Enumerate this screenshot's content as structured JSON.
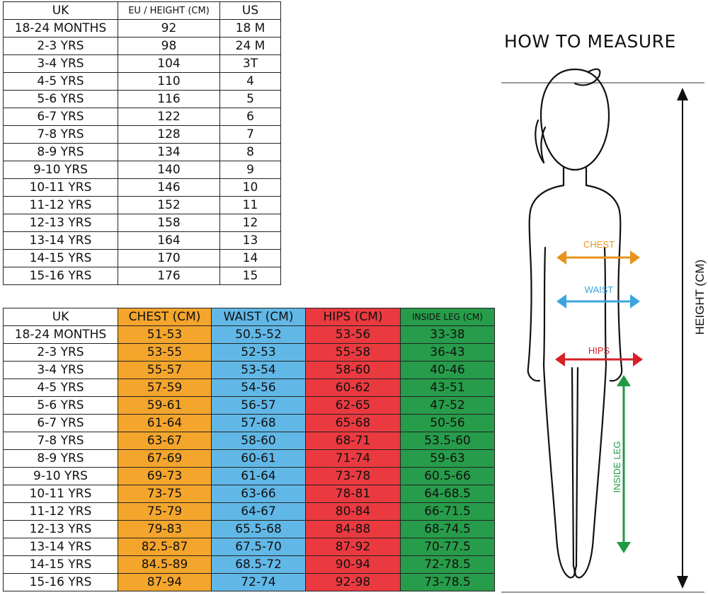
{
  "size_table": {
    "headers": [
      "UK",
      "EU / HEIGHT (CM)",
      "US"
    ],
    "rows": [
      [
        "18-24 MONTHS",
        "92",
        "18 M"
      ],
      [
        "2-3 YRS",
        "98",
        "24 M"
      ],
      [
        "3-4 YRS",
        "104",
        "3T"
      ],
      [
        "4-5 YRS",
        "110",
        "4"
      ],
      [
        "5-6 YRS",
        "116",
        "5"
      ],
      [
        "6-7 YRS",
        "122",
        "6"
      ],
      [
        "7-8 YRS",
        "128",
        "7"
      ],
      [
        "8-9 YRS",
        "134",
        "8"
      ],
      [
        "9-10 YRS",
        "140",
        "9"
      ],
      [
        "10-11 YRS",
        "146",
        "10"
      ],
      [
        "11-12 YRS",
        "152",
        "11"
      ],
      [
        "12-13 YRS",
        "158",
        "12"
      ],
      [
        "13-14 YRS",
        "164",
        "13"
      ],
      [
        "14-15 YRS",
        "170",
        "14"
      ],
      [
        "15-16 YRS",
        "176",
        "15"
      ]
    ]
  },
  "measure_table": {
    "headers": [
      "UK",
      "CHEST (CM)",
      "WAIST (CM)",
      "HIPS (CM)",
      "INSIDE LEG (CM)"
    ],
    "column_colors": [
      "#ffffff",
      "#f4a52c",
      "#61b8e7",
      "#ea3a40",
      "#279c4a"
    ],
    "rows": [
      [
        "18-24 MONTHS",
        "51-53",
        "50.5-52",
        "53-56",
        "33-38"
      ],
      [
        "2-3 YRS",
        "53-55",
        "52-53",
        "55-58",
        "36-43"
      ],
      [
        "3-4 YRS",
        "55-57",
        "53-54",
        "58-60",
        "40-46"
      ],
      [
        "4-5 YRS",
        "57-59",
        "54-56",
        "60-62",
        "43-51"
      ],
      [
        "5-6 YRS",
        "59-61",
        "56-57",
        "62-65",
        "47-52"
      ],
      [
        "6-7 YRS",
        "61-64",
        "57-68",
        "65-68",
        "50-56"
      ],
      [
        "7-8 YRS",
        "63-67",
        "58-60",
        "68-71",
        "53.5-60"
      ],
      [
        "8-9 YRS",
        "67-69",
        "60-61",
        "71-74",
        "59-63"
      ],
      [
        "9-10 YRS",
        "69-73",
        "61-64",
        "73-78",
        "60.5-66"
      ],
      [
        "10-11 YRS",
        "73-75",
        "63-66",
        "78-81",
        "64-68.5"
      ],
      [
        "11-12 YRS",
        "75-79",
        "64-67",
        "80-84",
        "66-71.5"
      ],
      [
        "12-13 YRS",
        "79-83",
        "65.5-68",
        "84-88",
        "68-74.5"
      ],
      [
        "13-14 YRS",
        "82.5-87",
        "67.5-70",
        "87-92",
        "70-77.5"
      ],
      [
        "14-15 YRS",
        "84.5-89",
        "68.5-72",
        "90-94",
        "72-78.5"
      ],
      [
        "15-16 YRS",
        "87-94",
        "72-74",
        "92-98",
        "73-78.5"
      ]
    ]
  },
  "how_to_measure": {
    "title": "HOW TO MEASURE",
    "labels": {
      "chest": "CHEST",
      "waist": "WAIST",
      "hips": "HIPS",
      "inside_leg": "INSIDE LEG",
      "height": "HEIGHT (CM)"
    },
    "colors": {
      "chest": "#e8921c",
      "waist": "#3aa6df",
      "hips": "#d42027",
      "inside_leg": "#1f9a43",
      "height": "#111111",
      "guide_line": "#999999"
    }
  }
}
